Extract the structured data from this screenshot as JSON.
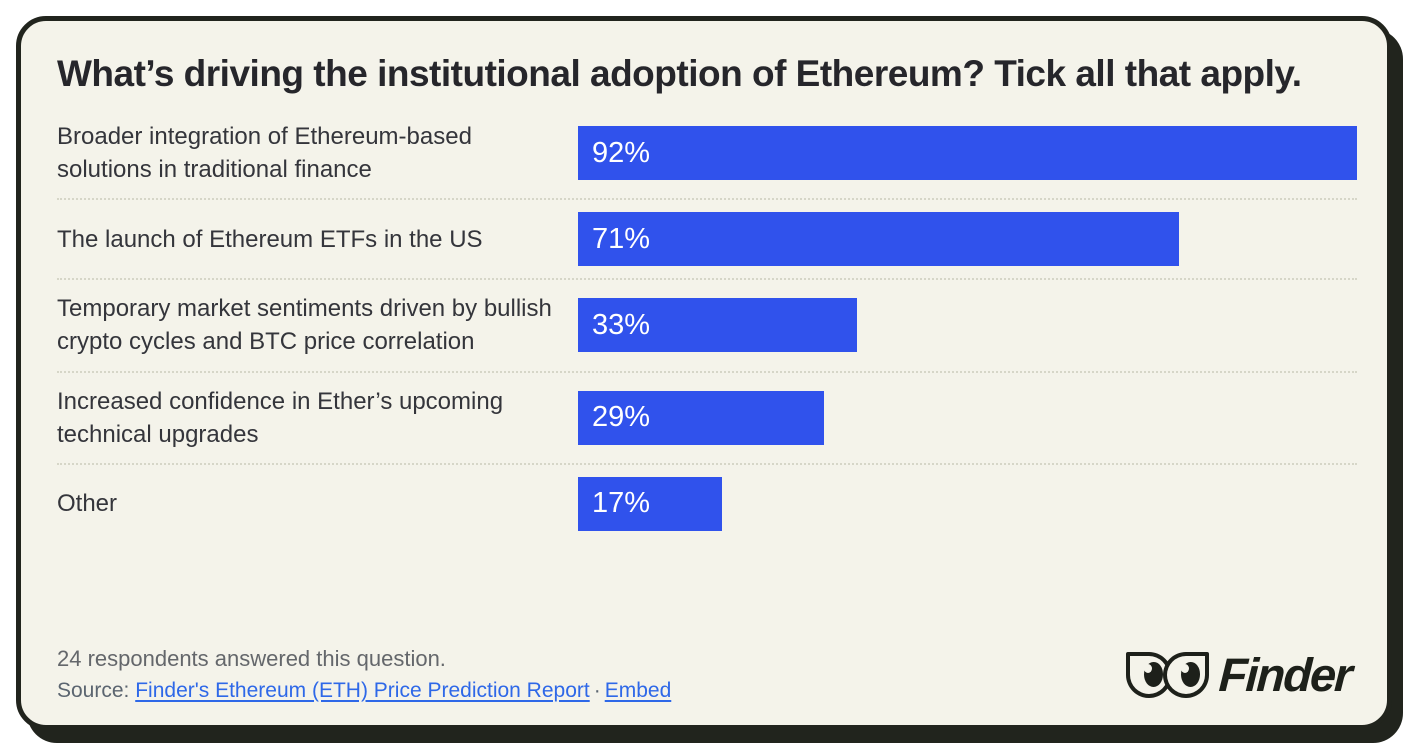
{
  "title": "What’s driving the institutional adoption of Ethereum? Tick all that apply.",
  "chart_data": {
    "type": "bar",
    "orientation": "horizontal",
    "title": "What’s driving the institutional adoption of Ethereum? Tick all that apply.",
    "categories": [
      "Broader integration of Ethereum-based solutions in traditional finance",
      "The launch of Ethereum ETFs in the US",
      "Temporary market sentiments driven by bullish crypto cycles and BTC price correlation",
      "Increased confidence in Ether’s upcoming technical upgrades",
      "Other"
    ],
    "values": [
      92,
      71,
      33,
      29,
      17
    ],
    "value_labels": [
      "92%",
      "71%",
      "33%",
      "29%",
      "17%"
    ],
    "xlim": [
      0,
      92
    ],
    "bar_color": "#3052ec",
    "value_label_color": "#ffffff",
    "grid": "off",
    "legend": "none"
  },
  "footer": {
    "respondents_note": "24 respondents answered this question.",
    "source_label": "Source:",
    "source_link_text": "Finder's Ethereum (ETH) Price Prediction Report",
    "link_separator": "·",
    "embed_link_text": "Embed"
  },
  "logo": {
    "brand": "Finder"
  },
  "colors": {
    "card_background": "#f4f3ea",
    "ink": "#21241d",
    "bar_blue": "#3052ec",
    "link_blue": "#2e68e8",
    "muted_text": "#64676b",
    "separator_dots": "#d6d6c8"
  }
}
